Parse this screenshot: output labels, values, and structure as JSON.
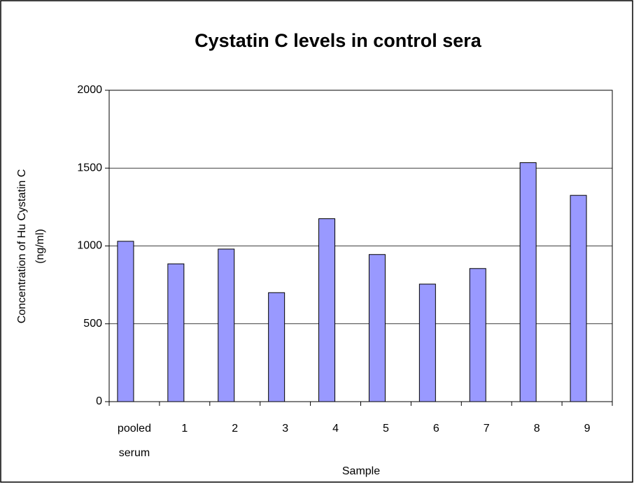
{
  "chart_data": {
    "type": "bar",
    "title": "Cystatin C levels in control sera",
    "x_label": "Sample",
    "y_label": [
      "Concentration of Hu Cystatin C",
      "(ng/ml)"
    ],
    "categories": [
      "pooled serum",
      "1",
      "2",
      "3",
      "4",
      "5",
      "6",
      "7",
      "8",
      "9"
    ],
    "values": [
      1030,
      885,
      980,
      700,
      1175,
      945,
      755,
      855,
      1535,
      1325
    ],
    "color": "#9999ff",
    "ylim": [
      0,
      2000
    ],
    "yticks": [
      0,
      500,
      1000,
      1500,
      2000
    ],
    "grid": true
  }
}
